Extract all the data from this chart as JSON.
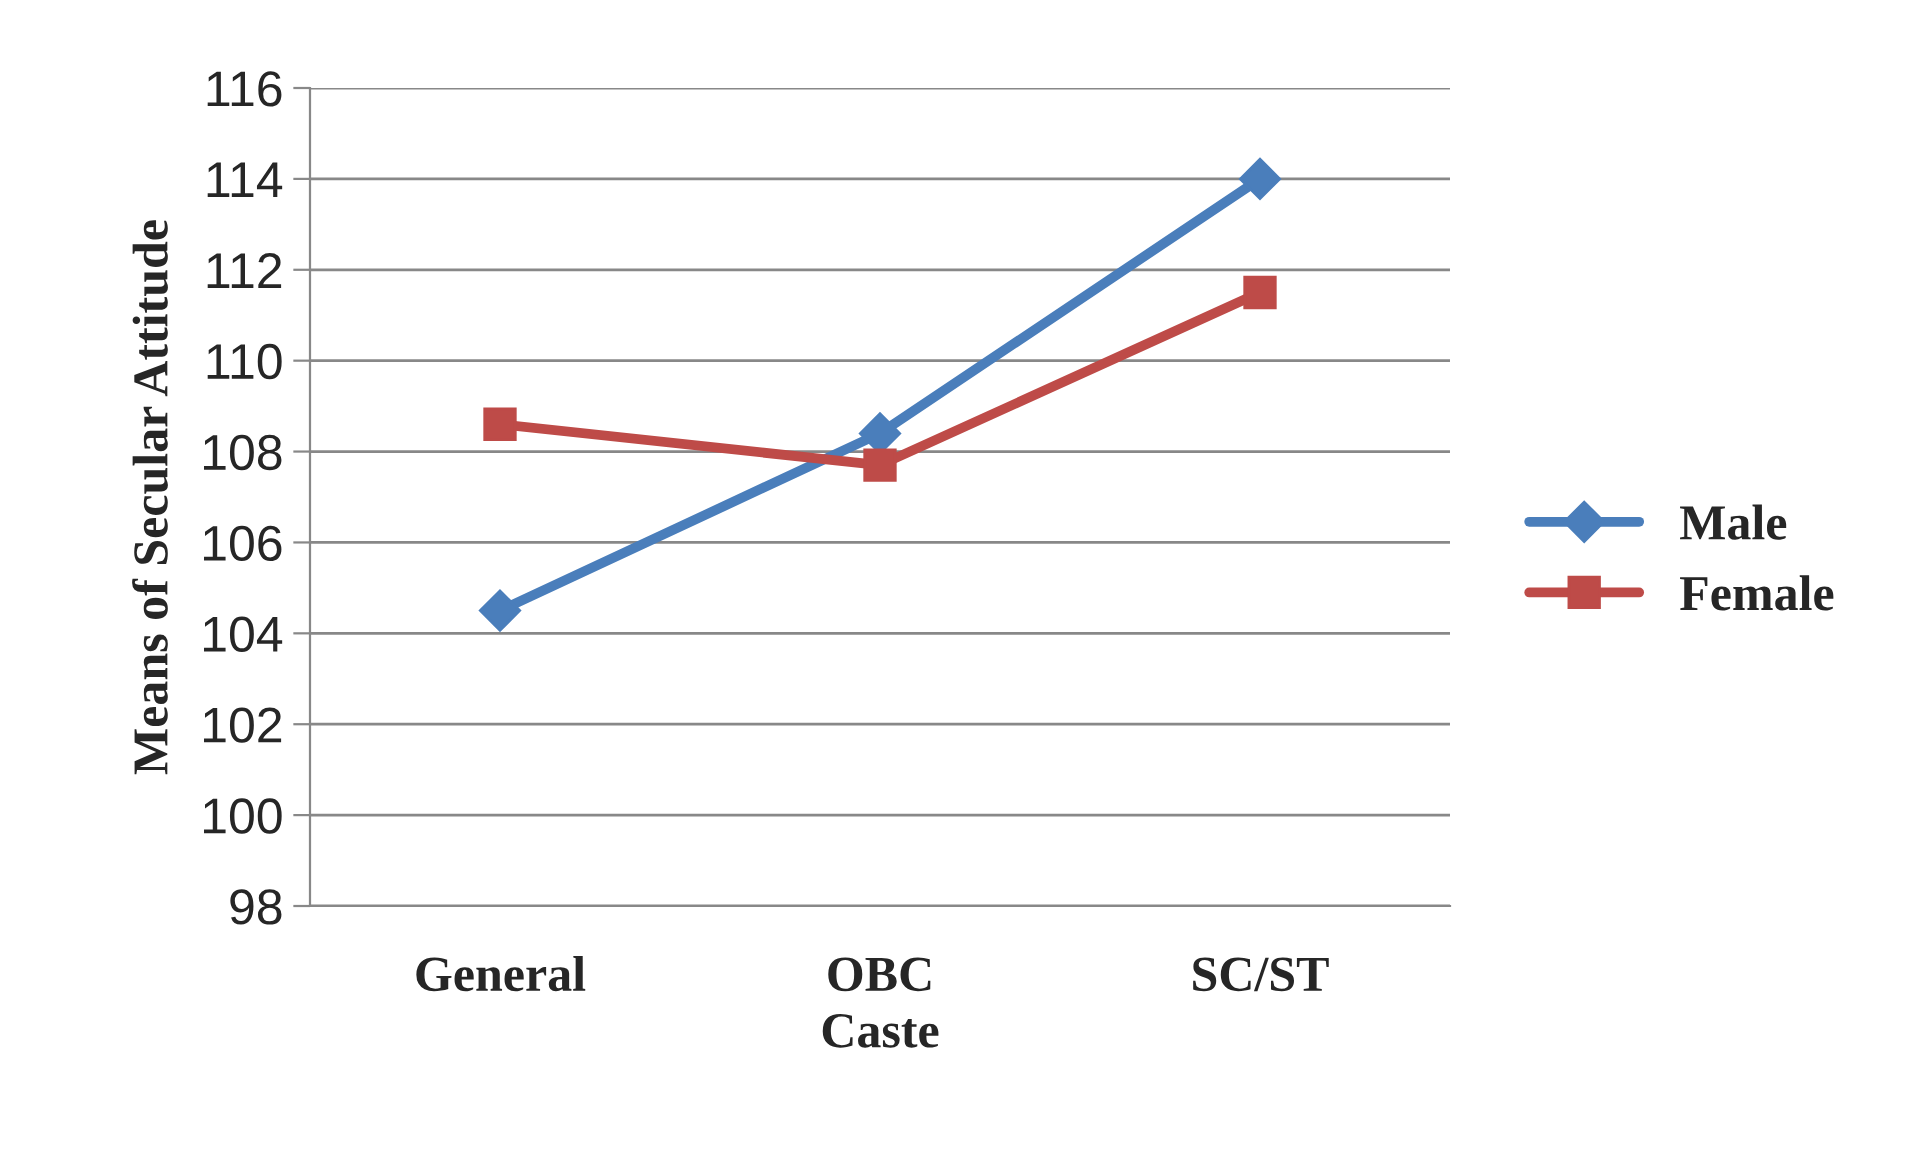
{
  "chart_data": {
    "type": "line",
    "xlabel": "Caste",
    "ylabel": "Means of Secular Attitude",
    "categories": [
      "General",
      "OBC",
      "SC/ST"
    ],
    "series": [
      {
        "name": "Male",
        "color": "#4a7ebb",
        "values": [
          104.5,
          108.4,
          114.0
        ],
        "marker": "diamond"
      },
      {
        "name": "Female",
        "color": "#be4b48",
        "values": [
          108.6,
          107.7,
          111.5
        ],
        "marker": "square"
      }
    ],
    "ylim": [
      98,
      116
    ],
    "yticks": [
      98,
      100,
      102,
      104,
      106,
      108,
      110,
      112,
      114,
      116
    ],
    "grid": "y",
    "legend": "right",
    "line_style": "solid"
  }
}
